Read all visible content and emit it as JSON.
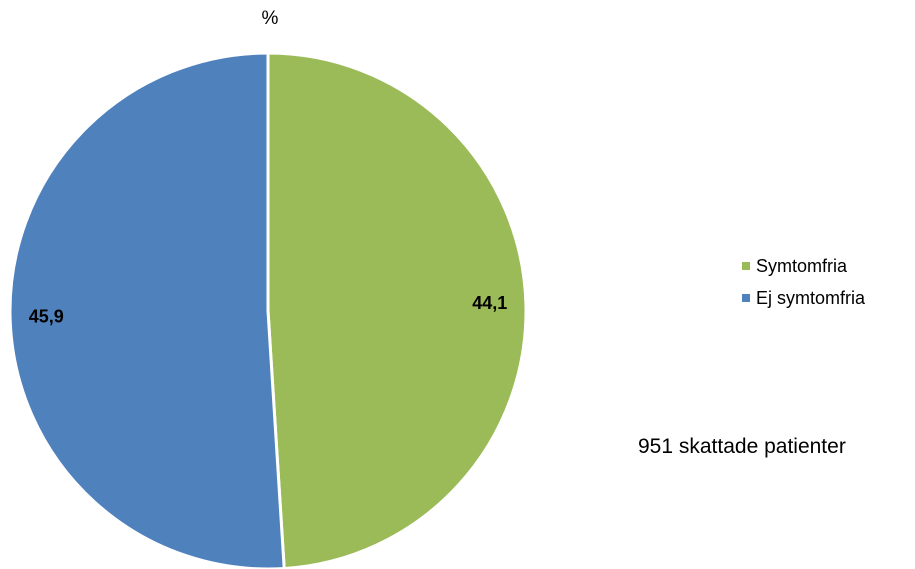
{
  "chart_data": {
    "type": "pie",
    "title": "%",
    "categories": [
      "Symtomfria",
      "Ej symtomfria"
    ],
    "values": [
      44.1,
      45.9
    ],
    "value_labels": [
      "44,1",
      "45,9"
    ],
    "colors": [
      "#9BBB59",
      "#4F81BD"
    ],
    "start_angle_deg": 0,
    "direction": "clockwise",
    "legend": "right"
  },
  "legend": {
    "items": [
      {
        "label": "Symtomfria",
        "color": "#9BBB59"
      },
      {
        "label": "Ej symtomfria",
        "color": "#4F81BD"
      }
    ]
  },
  "note": "951 skattade patienter"
}
